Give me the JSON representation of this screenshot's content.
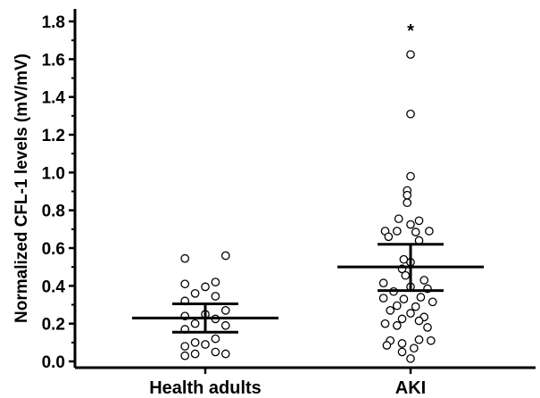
{
  "chart_data": {
    "type": "scatter",
    "ylabel": "Normalized CFL-1 levels (mV/mV)",
    "xlabel": "",
    "title": "",
    "ylim": [
      -0.05,
      1.85
    ],
    "yticks": [
      "0.0",
      "0.2",
      "0.4",
      "0.6",
      "0.8",
      "1.0",
      "1.2",
      "1.4",
      "1.6",
      "1.8"
    ],
    "categories": [
      "Health adults",
      "AKI"
    ],
    "annotations": [
      {
        "text": "*",
        "category": "AKI",
        "y": 1.78
      }
    ],
    "grid": false,
    "legend": "none",
    "series": [
      {
        "category": "Health adults",
        "mean": 0.23,
        "error_upper": 0.305,
        "error_lower": 0.155,
        "points": [
          {
            "dx": -0.12,
            "y": 0.545
          },
          {
            "dx": 0.12,
            "y": 0.56
          },
          {
            "dx": -0.12,
            "y": 0.41
          },
          {
            "dx": 0.06,
            "y": 0.42
          },
          {
            "dx": 0.0,
            "y": 0.395
          },
          {
            "dx": -0.06,
            "y": 0.36
          },
          {
            "dx": 0.06,
            "y": 0.345
          },
          {
            "dx": -0.12,
            "y": 0.32
          },
          {
            "dx": 0.12,
            "y": 0.27
          },
          {
            "dx": 0.0,
            "y": 0.25
          },
          {
            "dx": -0.12,
            "y": 0.24
          },
          {
            "dx": 0.06,
            "y": 0.225
          },
          {
            "dx": -0.06,
            "y": 0.2
          },
          {
            "dx": 0.12,
            "y": 0.19
          },
          {
            "dx": -0.12,
            "y": 0.17
          },
          {
            "dx": 0.06,
            "y": 0.12
          },
          {
            "dx": -0.06,
            "y": 0.1
          },
          {
            "dx": 0.0,
            "y": 0.09
          },
          {
            "dx": -0.12,
            "y": 0.08
          },
          {
            "dx": 0.06,
            "y": 0.05
          },
          {
            "dx": -0.06,
            "y": 0.04
          },
          {
            "dx": 0.12,
            "y": 0.04
          },
          {
            "dx": -0.12,
            "y": 0.03
          }
        ]
      },
      {
        "category": "AKI",
        "mean": 0.5,
        "error_upper": 0.62,
        "error_lower": 0.375,
        "points": [
          {
            "dx": 0.0,
            "y": 1.625
          },
          {
            "dx": 0.0,
            "y": 1.31
          },
          {
            "dx": 0.0,
            "y": 0.98
          },
          {
            "dx": -0.02,
            "y": 0.905
          },
          {
            "dx": -0.02,
            "y": 0.88
          },
          {
            "dx": -0.02,
            "y": 0.84
          },
          {
            "dx": -0.07,
            "y": 0.755
          },
          {
            "dx": 0.05,
            "y": 0.745
          },
          {
            "dx": 0.0,
            "y": 0.725
          },
          {
            "dx": -0.15,
            "y": 0.69
          },
          {
            "dx": -0.08,
            "y": 0.69
          },
          {
            "dx": 0.03,
            "y": 0.685
          },
          {
            "dx": 0.11,
            "y": 0.69
          },
          {
            "dx": -0.13,
            "y": 0.66
          },
          {
            "dx": 0.05,
            "y": 0.64
          },
          {
            "dx": -0.04,
            "y": 0.54
          },
          {
            "dx": 0.0,
            "y": 0.525
          },
          {
            "dx": -0.05,
            "y": 0.49
          },
          {
            "dx": -0.03,
            "y": 0.455
          },
          {
            "dx": 0.08,
            "y": 0.43
          },
          {
            "dx": -0.16,
            "y": 0.415
          },
          {
            "dx": 0.0,
            "y": 0.395
          },
          {
            "dx": 0.1,
            "y": 0.385
          },
          {
            "dx": -0.1,
            "y": 0.37
          },
          {
            "dx": 0.06,
            "y": 0.34
          },
          {
            "dx": -0.16,
            "y": 0.335
          },
          {
            "dx": -0.04,
            "y": 0.33
          },
          {
            "dx": 0.13,
            "y": 0.315
          },
          {
            "dx": -0.08,
            "y": 0.295
          },
          {
            "dx": 0.03,
            "y": 0.29
          },
          {
            "dx": -0.12,
            "y": 0.27
          },
          {
            "dx": 0.0,
            "y": 0.255
          },
          {
            "dx": 0.08,
            "y": 0.235
          },
          {
            "dx": -0.05,
            "y": 0.225
          },
          {
            "dx": 0.05,
            "y": 0.215
          },
          {
            "dx": -0.15,
            "y": 0.2
          },
          {
            "dx": -0.08,
            "y": 0.19
          },
          {
            "dx": 0.1,
            "y": 0.18
          },
          {
            "dx": -0.12,
            "y": 0.11
          },
          {
            "dx": 0.05,
            "y": 0.115
          },
          {
            "dx": -0.05,
            "y": 0.095
          },
          {
            "dx": 0.12,
            "y": 0.11
          },
          {
            "dx": -0.14,
            "y": 0.085
          },
          {
            "dx": 0.02,
            "y": 0.07
          },
          {
            "dx": -0.05,
            "y": 0.05
          },
          {
            "dx": 0.0,
            "y": 0.015
          }
        ]
      }
    ]
  }
}
